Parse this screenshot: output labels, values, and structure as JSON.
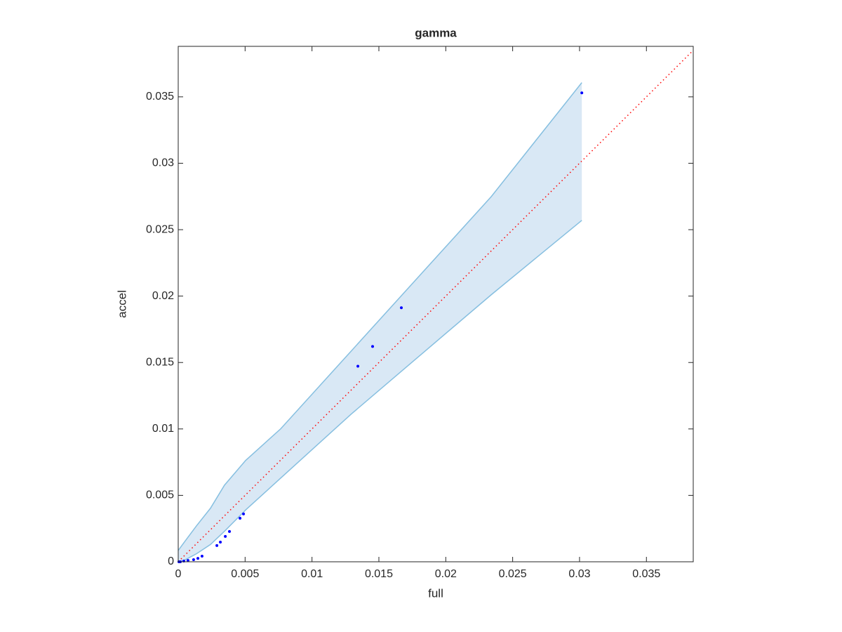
{
  "chart_data": {
    "type": "scatter",
    "title": "gamma",
    "x_label": "full",
    "y_label": "accel",
    "x": [
      0.03017,
      0.01668,
      0.01453,
      0.01343,
      0.00488,
      0.00462,
      0.00383,
      0.00352,
      0.00315,
      0.00289,
      0.00178,
      0.00147,
      0.00115,
      0.00073,
      0.00042,
      0.00016,
      5e-05
    ],
    "y": [
      0.0353,
      0.01912,
      0.01621,
      0.01472,
      0.0036,
      0.00328,
      0.00228,
      0.00191,
      0.00148,
      0.00122,
      0.00042,
      0.00026,
      0.00016,
      0.0001,
      5e-05,
      0,
      0
    ],
    "color": "#0000ff",
    "band": {
      "x": [
        0,
        0.00042,
        0.00136,
        0.00241,
        0.00346,
        0.00504,
        0.00766,
        0.01291,
        0.01815,
        0.0234,
        0.03017
      ],
      "upper": [
        0.00085,
        0.00143,
        0.0027,
        0.00403,
        0.00577,
        0.00763,
        0.01001,
        0.01584,
        0.02166,
        0.02749,
        0.03607
      ],
      "lower": [
        0,
        0.0001,
        0.0006,
        0.0013,
        0.0023,
        0.0039,
        0.0063,
        0.0111,
        0.0156,
        0.0201,
        0.0257
      ],
      "color": "#86bfe0",
      "fill": "#d9e8f5"
    },
    "diagonal": {
      "x": [
        0,
        0.0385
      ],
      "y": [
        0,
        0.0385
      ],
      "color": "#ff0000"
    },
    "xlim": [
      0,
      0.0385
    ],
    "ylim": [
      0,
      0.0388
    ],
    "xticks": [
      0,
      0.005,
      0.01,
      0.015,
      0.02,
      0.025,
      0.03,
      0.035
    ],
    "yticks": [
      0,
      0.005,
      0.01,
      0.015,
      0.02,
      0.025,
      0.03,
      0.035
    ]
  }
}
